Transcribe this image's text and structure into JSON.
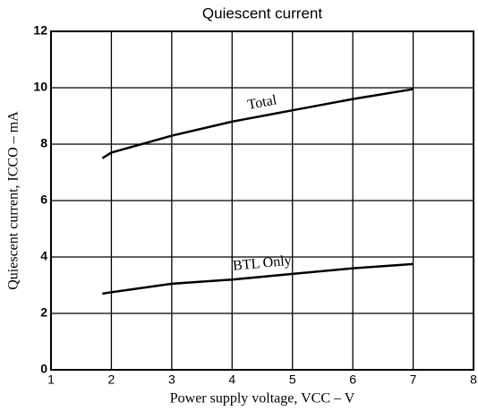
{
  "chart_data": {
    "type": "line",
    "title": "Quiescent current",
    "x_label": "Power supply voltage, VCC – V",
    "y_label": "Quiescent current, ICCO – mA",
    "x": [
      1.85,
      2,
      3,
      4,
      5,
      6,
      7
    ],
    "series": [
      {
        "name": "Total",
        "color": "#000000",
        "values": [
          7.5,
          7.7,
          8.3,
          8.8,
          9.2,
          9.6,
          9.95
        ]
      },
      {
        "name": "BTL Only",
        "color": "#000000",
        "values": [
          2.7,
          2.75,
          3.05,
          3.2,
          3.4,
          3.6,
          3.75
        ]
      }
    ],
    "xlim": [
      1,
      8
    ],
    "xticks": [
      1,
      2,
      3,
      4,
      5,
      6,
      7,
      8
    ],
    "ylim": [
      0,
      12
    ],
    "yticks": [
      0,
      2,
      4,
      6,
      8,
      10,
      12
    ],
    "grid": true
  }
}
